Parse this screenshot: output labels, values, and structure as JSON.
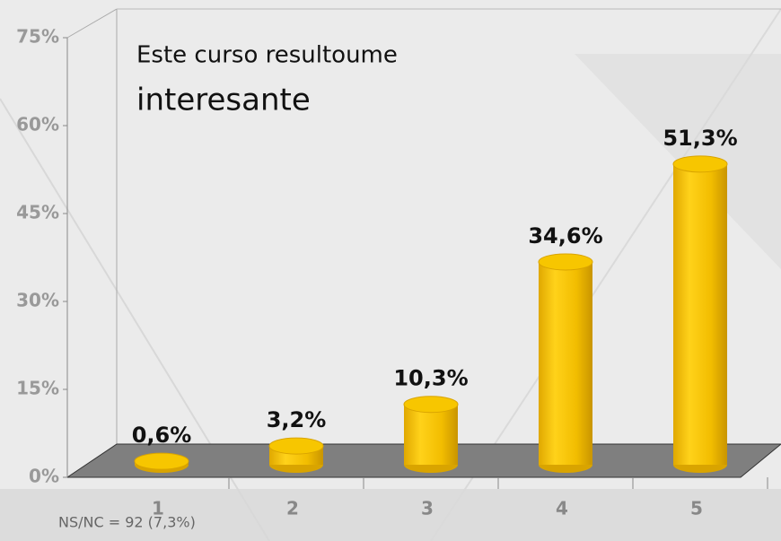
{
  "chart_data": {
    "type": "bar",
    "title": "Este curso resultoume",
    "subtitle": "interesante",
    "categories": [
      "1",
      "2",
      "3",
      "4",
      "5"
    ],
    "values": [
      0.6,
      3.2,
      10.3,
      34.6,
      51.3
    ],
    "value_labels": [
      "0,6%",
      "3,2%",
      "10,3%",
      "34,6%",
      "51,3%"
    ],
    "color": "#f7c600",
    "ylim": [
      0,
      75
    ],
    "yticks": [
      {
        "value": 0,
        "label": "0%"
      },
      {
        "value": 15,
        "label": "15%"
      },
      {
        "value": 30,
        "label": "30%"
      },
      {
        "value": 45,
        "label": "45%"
      },
      {
        "value": 60,
        "label": "60%"
      },
      {
        "value": 75,
        "label": "75%"
      }
    ],
    "annotation": "NS/NC = 92 (7,3%)"
  }
}
